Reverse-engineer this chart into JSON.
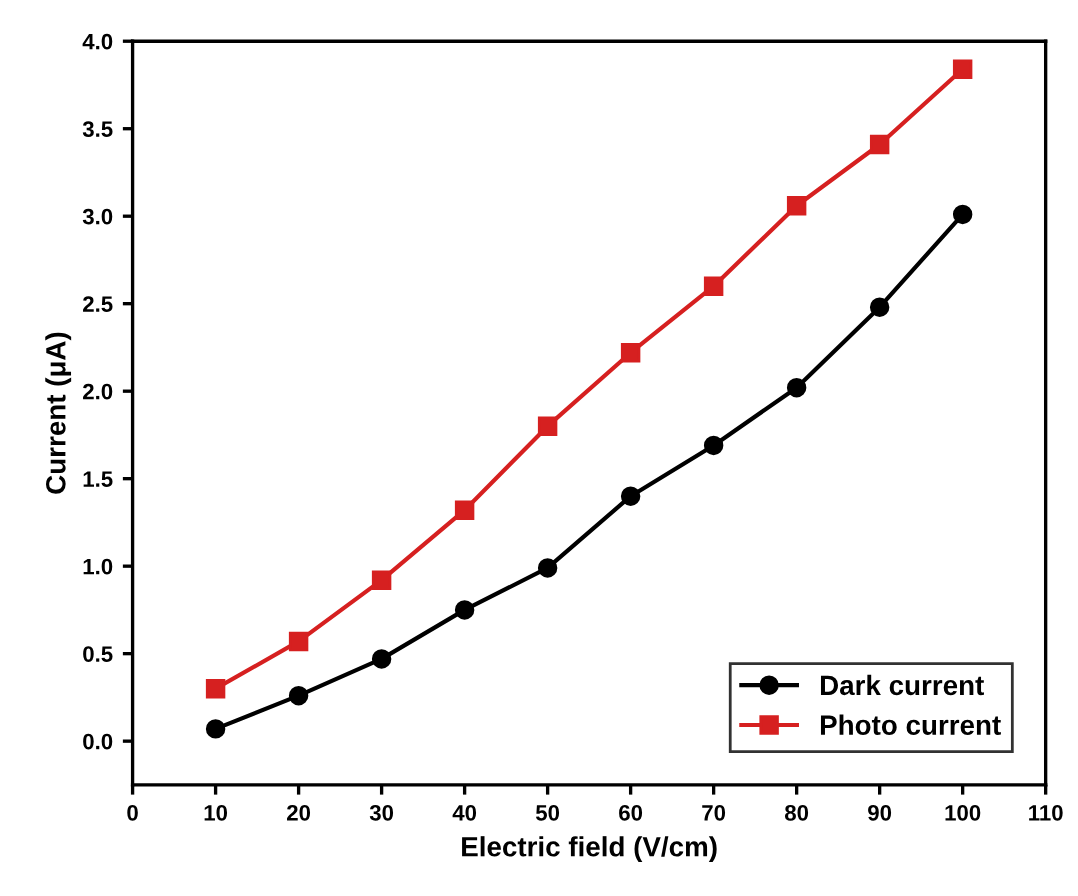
{
  "chart_data": {
    "type": "line",
    "xlabel": "Electric field (V/cm)",
    "ylabel": "Current (μA)",
    "x": [
      10,
      20,
      30,
      40,
      50,
      60,
      70,
      80,
      90,
      100
    ],
    "series": [
      {
        "name": "Dark current",
        "color": "#000000",
        "marker": "circle",
        "values": [
          0.07,
          0.26,
          0.47,
          0.75,
          0.99,
          1.4,
          1.69,
          2.02,
          2.48,
          3.01
        ]
      },
      {
        "name": "Photo current",
        "color": "#d62020",
        "marker": "square",
        "values": [
          0.3,
          0.57,
          0.92,
          1.32,
          1.8,
          2.22,
          2.6,
          3.06,
          3.41,
          3.84
        ]
      }
    ],
    "xlim": [
      0,
      110
    ],
    "xticks": [
      0,
      10,
      20,
      30,
      40,
      50,
      60,
      70,
      80,
      90,
      100,
      110
    ],
    "ylim": [
      -0.25,
      4.0
    ],
    "yticks": [
      {
        "value": 0,
        "label": "0.0"
      },
      0.5,
      {
        "value": 1,
        "label": "1.0"
      },
      1.5,
      {
        "value": 2,
        "label": "2.0"
      },
      2.5,
      {
        "value": 3,
        "label": "3.0"
      },
      3.5,
      {
        "value": 4,
        "label": "4.0"
      }
    ],
    "grid": false,
    "legend": "bottom right",
    "line_style": "solid"
  }
}
